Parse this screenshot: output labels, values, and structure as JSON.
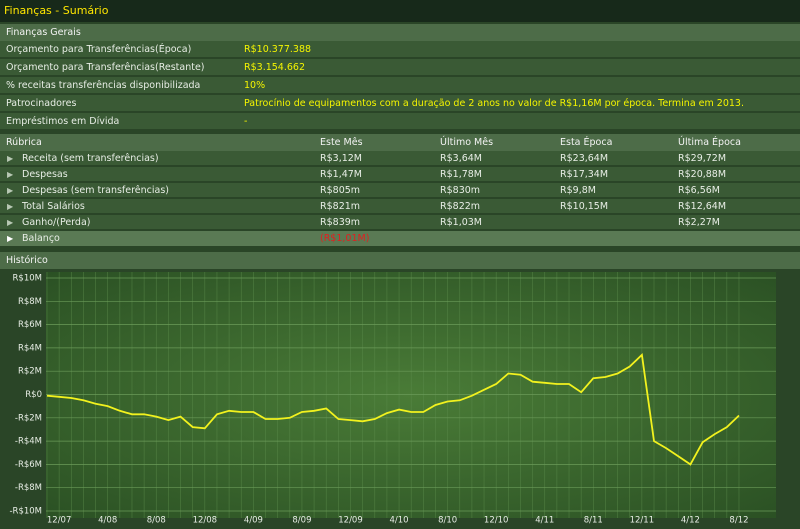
{
  "header": {
    "title": "Finanças - Sumário"
  },
  "general": {
    "title": "Finanças Gerais",
    "rows": [
      [
        "Orçamento para Transferências(Época)",
        "R$10.377.388"
      ],
      [
        "Orçamento para Transferências(Restante)",
        "R$3.154.662"
      ],
      [
        "% receitas transferências disponibilizada",
        "10%"
      ],
      [
        "Patrocinadores",
        "Patrocínio de equipamentos com a duração de 2 anos no valor de R$1,16M por época. Termina em 2013."
      ],
      [
        "Empréstimos em Dívida",
        "-"
      ]
    ]
  },
  "table": {
    "columns": [
      "Rúbrica",
      "Este Mês",
      "Último Mês",
      "Esta Época",
      "Última Época"
    ],
    "rows": [
      [
        "Receita (sem transferências)",
        "R$3,12M",
        "R$3,64M",
        "R$23,64M",
        "R$29,72M"
      ],
      [
        "Despesas",
        "R$1,47M",
        "R$1,78M",
        "R$17,34M",
        "R$20,88M"
      ],
      [
        "Despesas (sem transferências)",
        "R$805m",
        "R$830m",
        "R$9,8M",
        "R$6,56M"
      ],
      [
        "Total Salários",
        "R$821m",
        "R$822m",
        "R$10,15M",
        "R$12,64M"
      ],
      [
        "Ganho/(Perda)",
        "R$839m",
        "R$1,03M",
        null,
        "R$2,27M"
      ],
      [
        "Balanço",
        "(R$1,01M)",
        null,
        null,
        null
      ]
    ]
  },
  "chart": {
    "type": "line",
    "title": "Histórico",
    "color": "#f2f21e",
    "grid": true,
    "categories": [
      null,
      "12/07",
      null,
      null,
      null,
      "4/08",
      null,
      null,
      null,
      "8/08",
      null,
      null,
      null,
      "12/08",
      null,
      null,
      null,
      "4/09",
      null,
      null,
      null,
      "8/09",
      null,
      null,
      null,
      "12/09",
      null,
      null,
      null,
      "4/10",
      null,
      null,
      null,
      "8/10",
      null,
      null,
      null,
      "12/10",
      null,
      null,
      null,
      "4/11",
      null,
      null,
      null,
      "8/11",
      null,
      null,
      null,
      "12/11",
      null,
      null,
      null,
      "4/12",
      null,
      null,
      null,
      "8/12"
    ],
    "values": [
      -0.1,
      -0.2,
      -0.3,
      -0.5,
      -0.8,
      -1.0,
      -1.4,
      -1.7,
      -1.7,
      -1.9,
      -2.2,
      -1.9,
      -2.8,
      -2.9,
      -1.7,
      -1.4,
      -1.5,
      -1.5,
      -2.1,
      -2.1,
      -2.0,
      -1.5,
      -1.4,
      -1.2,
      -2.1,
      -2.2,
      -2.3,
      -2.1,
      -1.6,
      -1.3,
      -1.5,
      -1.5,
      -0.9,
      -0.6,
      -0.5,
      -0.1,
      0.4,
      0.9,
      1.8,
      1.7,
      1.1,
      1.0,
      0.9,
      0.9,
      0.2,
      1.4,
      1.5,
      1.8,
      2.4,
      3.4,
      -4.0,
      -4.6,
      -5.3,
      -6.0,
      -4.1,
      -3.4,
      -2.8,
      -1.8
    ],
    "ylim": [
      -10,
      10
    ],
    "yticks": [
      {
        "value": 10,
        "label": "R$10M"
      },
      {
        "value": 8,
        "label": "R$8M"
      },
      {
        "value": 6,
        "label": "R$6M"
      },
      {
        "value": 4,
        "label": "R$4M"
      },
      {
        "value": 2,
        "label": "R$2M"
      },
      {
        "value": 0,
        "label": "R$0"
      },
      {
        "value": -2,
        "label": "-R$2M"
      },
      {
        "value": -4,
        "label": "-R$4M"
      },
      {
        "value": -6,
        "label": "-R$6M"
      },
      {
        "value": -8,
        "label": "-R$8M"
      },
      {
        "value": -10,
        "label": "-R$10M"
      }
    ]
  }
}
